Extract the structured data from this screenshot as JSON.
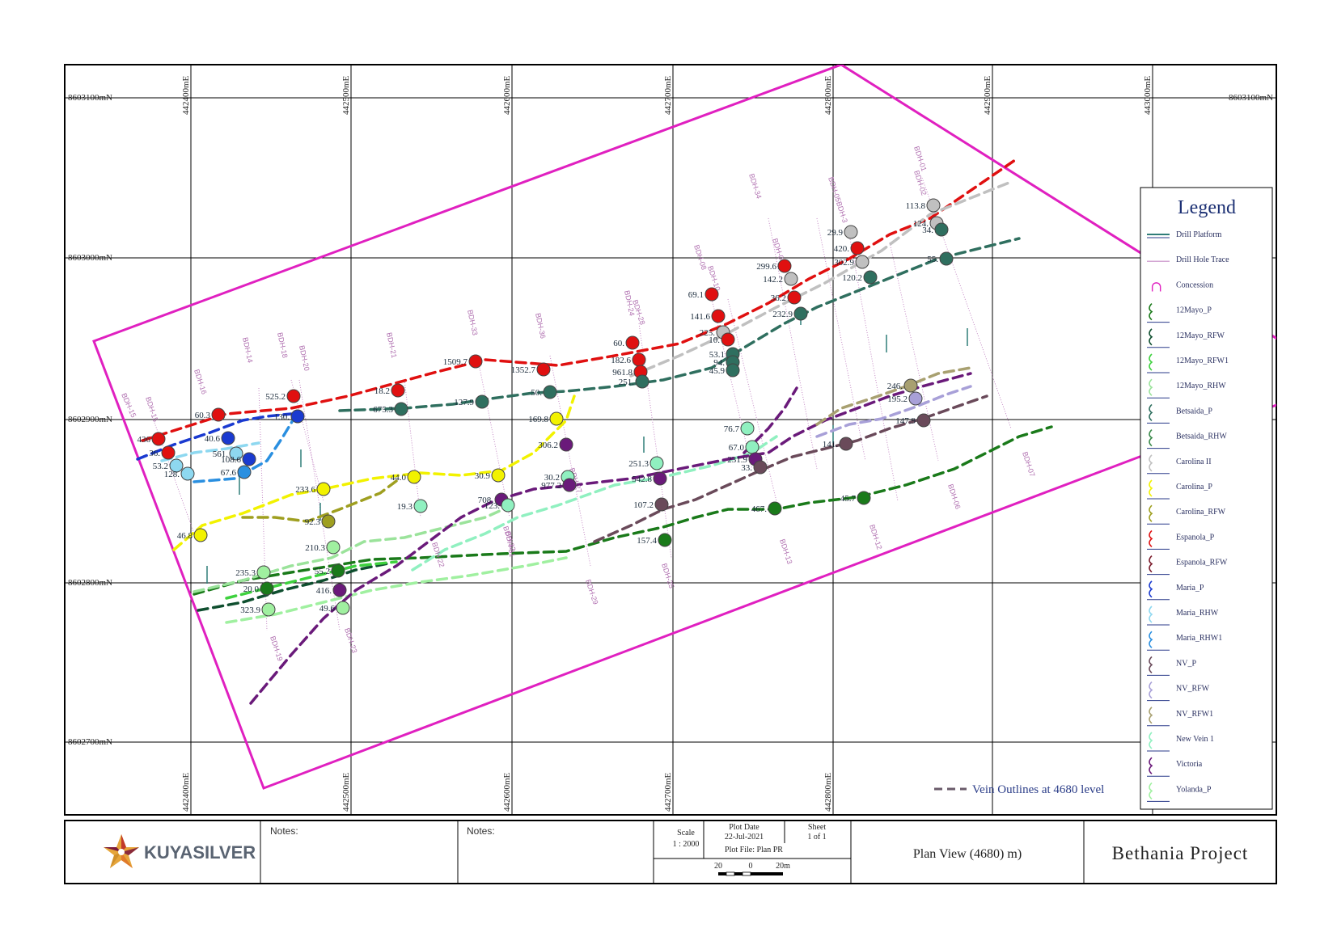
{
  "coords": {
    "north_labels": [
      "8603100mN",
      "8603000mN",
      "8602900mN",
      "8602800mN",
      "8602700mN"
    ],
    "east_labels": [
      "442400mE",
      "442500mE",
      "442600mE",
      "442700mE",
      "442800mE",
      "442900mE",
      "443000mE"
    ]
  },
  "legend": {
    "title": "Legend",
    "items": [
      {
        "label": "Drill Platform",
        "color": "#2f7d78",
        "kind": "line"
      },
      {
        "label": "Drill Hole Trace",
        "color": "#c58ac5",
        "kind": "thin"
      },
      {
        "label": "Concession",
        "color": "#e020c0",
        "kind": "n"
      },
      {
        "label": "12Mayo_P",
        "color": "#1a7a1a",
        "kind": "vein"
      },
      {
        "label": "12Mayo_RFW",
        "color": "#0f4f2f",
        "kind": "vein"
      },
      {
        "label": "12Mayo_RFW1",
        "color": "#3ed13e",
        "kind": "vein"
      },
      {
        "label": "12Mayo_RHW",
        "color": "#9be39b",
        "kind": "vein"
      },
      {
        "label": "Betsaida_P",
        "color": "#2f6f5f",
        "kind": "vein"
      },
      {
        "label": "Betsaida_RHW",
        "color": "#3a8a4a",
        "kind": "vein"
      },
      {
        "label": "Carolina II",
        "color": "#c0c0c0",
        "kind": "vein"
      },
      {
        "label": "Carolina_P",
        "color": "#f2f200",
        "kind": "vein"
      },
      {
        "label": "Carolina_RFW",
        "color": "#9f9f20",
        "kind": "vein"
      },
      {
        "label": "Espanola_P",
        "color": "#e01010",
        "kind": "vein"
      },
      {
        "label": "Espanola_RFW",
        "color": "#7a1a2a",
        "kind": "vein"
      },
      {
        "label": "Maria_P",
        "color": "#1a3ad0",
        "kind": "vein"
      },
      {
        "label": "Maria_RHW",
        "color": "#8ed8f0",
        "kind": "vein"
      },
      {
        "label": "Maria_RHW1",
        "color": "#2a8fe0",
        "kind": "vein"
      },
      {
        "label": "NV_P",
        "color": "#6a4a5a",
        "kind": "vein"
      },
      {
        "label": "NV_RFW",
        "color": "#a8a0d8",
        "kind": "vein"
      },
      {
        "label": "NV_RFW1",
        "color": "#a8a070",
        "kind": "vein"
      },
      {
        "label": "New Vein 1",
        "color": "#90f0c0",
        "kind": "vein"
      },
      {
        "label": "Victoria",
        "color": "#6a1a7a",
        "kind": "vein"
      },
      {
        "label": "Yolanda_P",
        "color": "#a0f0a0",
        "kind": "vein"
      }
    ]
  },
  "vein_note": "Vein Outlines at 4680 level",
  "vein_note_color": "#6a5a6a",
  "holes": [
    {
      "name": "BDH-15"
    },
    {
      "name": "BDH-15"
    },
    {
      "name": "BDH-16"
    },
    {
      "name": "BDH-14"
    },
    {
      "name": "BDH-18"
    },
    {
      "name": "BDH-20"
    },
    {
      "name": "BDH-21"
    },
    {
      "name": "BDH-33"
    },
    {
      "name": "BDH-36"
    },
    {
      "name": "BDH-24"
    },
    {
      "name": "BDH-28"
    },
    {
      "name": "BDH-08"
    },
    {
      "name": "BDH-10"
    },
    {
      "name": "BDH-34"
    },
    {
      "name": "BDH-04"
    },
    {
      "name": "BDH-05BDH-3"
    },
    {
      "name": "BDH-01"
    },
    {
      "name": "BDH-02"
    },
    {
      "name": "BDH-07"
    },
    {
      "name": "BDH-06"
    },
    {
      "name": "BDH-12"
    },
    {
      "name": "BDH-13"
    },
    {
      "name": "BDH-25"
    },
    {
      "name": "BDH-29"
    },
    {
      "name": "BDH-32"
    },
    {
      "name": "BDH-31"
    },
    {
      "name": "BDH-27"
    },
    {
      "name": "BDH-22"
    },
    {
      "name": "BDH-23"
    },
    {
      "name": "BDH-19"
    }
  ],
  "intercepts": [
    {
      "label": "436",
      "color": "#e01010"
    },
    {
      "label": "36.",
      "color": "#e01010"
    },
    {
      "label": "53.2",
      "color": "#8ed8f0"
    },
    {
      "label": "128.",
      "color": "#8ed8f0"
    },
    {
      "label": "60.3",
      "color": "#e01010"
    },
    {
      "label": "40.6",
      "color": "#1a3ad0"
    },
    {
      "label": "561.",
      "color": "#8ed8f0"
    },
    {
      "label": "108.6",
      "color": "#1a3ad0"
    },
    {
      "label": "67.6",
      "color": "#2a8fe0"
    },
    {
      "label": "525.2",
      "color": "#e01010"
    },
    {
      "label": "130.",
      "color": "#1a3ad0"
    },
    {
      "label": "46.8",
      "color": "#f2f200"
    },
    {
      "label": "233.6",
      "color": "#f2f200"
    },
    {
      "label": "92.3",
      "color": "#9f9f20"
    },
    {
      "label": "210.3",
      "color": "#a0f0a0"
    },
    {
      "label": "235.3",
      "color": "#a0f0a0"
    },
    {
      "label": "20.0",
      "color": "#1a7a1a"
    },
    {
      "label": "323.9",
      "color": "#a0f0a0"
    },
    {
      "label": "55.2",
      "color": "#1a7a1a"
    },
    {
      "label": "416.",
      "color": "#6a1a7a"
    },
    {
      "label": "49.6",
      "color": "#a0f0a0"
    },
    {
      "label": "18.2",
      "color": "#e01010"
    },
    {
      "label": "675.3",
      "color": "#2f6f5f"
    },
    {
      "label": "44.0",
      "color": "#f2f200"
    },
    {
      "label": "19.3",
      "color": "#90f0c0"
    },
    {
      "label": "1509.7",
      "color": "#e01010"
    },
    {
      "label": "127.9",
      "color": "#2f6f5f"
    },
    {
      "label": "30.9",
      "color": "#f2f200"
    },
    {
      "label": "708.",
      "color": "#6a1a7a"
    },
    {
      "label": "123.",
      "color": "#90f0c0"
    },
    {
      "label": "1352.7",
      "color": "#e01010"
    },
    {
      "label": "50.",
      "color": "#2f6f5f"
    },
    {
      "label": "169.8",
      "color": "#f2f200"
    },
    {
      "label": "306.2",
      "color": "#6a1a7a"
    },
    {
      "label": "30.2",
      "color": "#90f0c0"
    },
    {
      "label": "977.2",
      "color": "#6a1a7a"
    },
    {
      "label": "60.",
      "color": "#e01010"
    },
    {
      "label": "182.6",
      "color": "#e01010"
    },
    {
      "label": "961.8",
      "color": "#e01010"
    },
    {
      "label": "251.",
      "color": "#2f6f5f"
    },
    {
      "label": "251.3",
      "color": "#90f0c0"
    },
    {
      "label": "542.8",
      "color": "#6a1a7a"
    },
    {
      "label": "107.2",
      "color": "#6a4a5a"
    },
    {
      "label": "157.4",
      "color": "#1a7a1a"
    },
    {
      "label": "69.1",
      "color": "#e01010"
    },
    {
      "label": "141.6",
      "color": "#e01010"
    },
    {
      "label": "225.",
      "color": "#c0c0c0"
    },
    {
      "label": "10.",
      "color": "#e01010"
    },
    {
      "label": "53.1",
      "color": "#2f6f5f"
    },
    {
      "label": "94.",
      "color": "#2f6f5f"
    },
    {
      "label": "45.9",
      "color": "#2f6f5f"
    },
    {
      "label": "76.7",
      "color": "#90f0c0"
    },
    {
      "label": "67.0",
      "color": "#90f0c0"
    },
    {
      "label": "231.9",
      "color": "#6a1a7a"
    },
    {
      "label": "33.",
      "color": "#6a4a5a"
    },
    {
      "label": "467.",
      "color": "#1a7a1a"
    },
    {
      "label": "299.6",
      "color": "#e01010"
    },
    {
      "label": "142.2",
      "color": "#c0c0c0"
    },
    {
      "label": "36.2",
      "color": "#e01010"
    },
    {
      "label": "232.9",
      "color": "#2f6f5f"
    },
    {
      "label": "29.9",
      "color": "#c0c0c0"
    },
    {
      "label": "420.",
      "color": "#e01010"
    },
    {
      "label": "302.9",
      "color": "#c0c0c0"
    },
    {
      "label": "120.2",
      "color": "#2f6f5f"
    },
    {
      "label": "141.",
      "color": "#6a4a5a"
    },
    {
      "label": "45.7",
      "color": "#1a7a1a"
    },
    {
      "label": "246.",
      "color": "#a8a070"
    },
    {
      "label": "195.2",
      "color": "#a8a0d8"
    },
    {
      "label": "147.9",
      "color": "#6a4a5a"
    },
    {
      "label": "113.8",
      "color": "#c0c0c0"
    },
    {
      "label": "124.",
      "color": "#c0c0c0"
    },
    {
      "label": "34.",
      "color": "#2f6f5f"
    },
    {
      "label": "55.",
      "color": "#2f6f5f"
    }
  ],
  "title_block": {
    "logo_text": "KUYASILVER",
    "notes1": "Notes:",
    "notes2": "Notes:",
    "scale_label": "Scale",
    "scale_value": "1 : 2000",
    "plot_date_label": "Plot Date",
    "plot_date_value": "22-Jul-2021",
    "plot_file": "Plot File: Plan PR",
    "sheet_label": "Sheet",
    "sheet_value": "1 of 1",
    "scale_bar": [
      "20",
      "0",
      "20m"
    ],
    "plan_view": "Plan View (4680) m)",
    "project": "Bethania Project"
  }
}
